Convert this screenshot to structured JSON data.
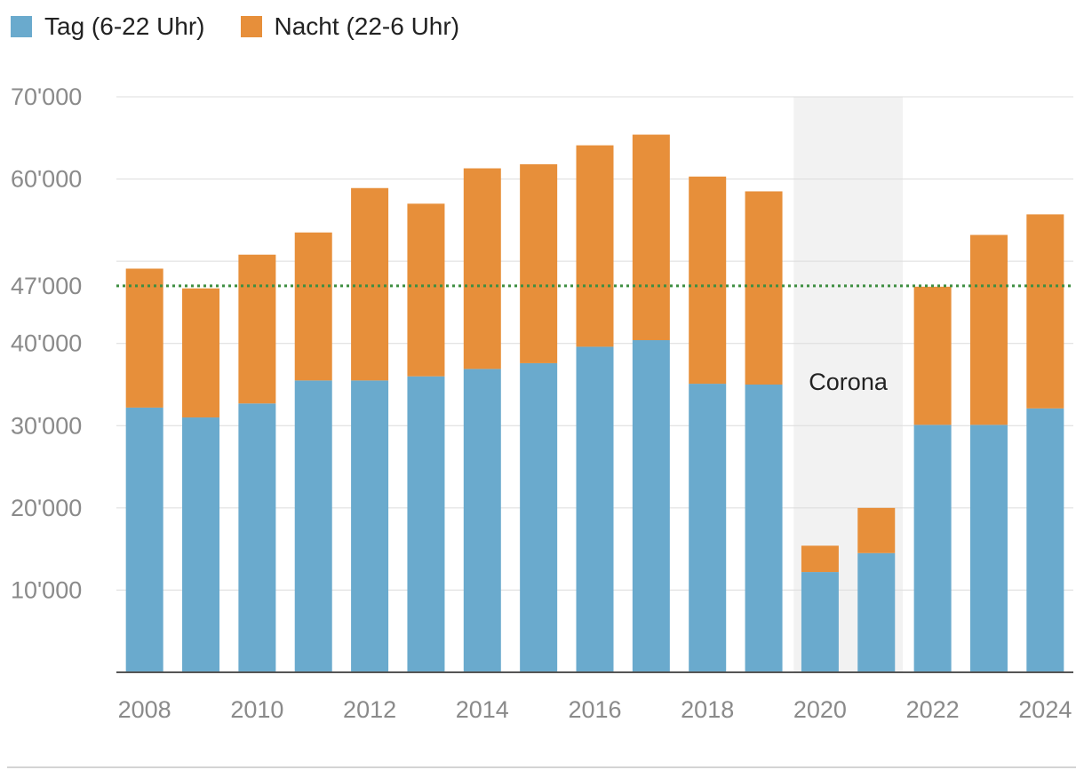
{
  "chart_data": {
    "type": "bar",
    "stacked": true,
    "categories": [
      "2008",
      "2009",
      "2010",
      "2011",
      "2012",
      "2013",
      "2014",
      "2015",
      "2016",
      "2017",
      "2018",
      "2019",
      "2020",
      "2021",
      "2022",
      "2023",
      "2024"
    ],
    "x_tick_labels": [
      "2008",
      "2010",
      "2012",
      "2014",
      "2016",
      "2018",
      "2020",
      "2022",
      "2024"
    ],
    "series": [
      {
        "name": "Tag (6-22 Uhr)",
        "color": "#6aaacd",
        "values": [
          32200,
          31000,
          32700,
          35500,
          35500,
          36000,
          36900,
          37600,
          39600,
          40400,
          35100,
          35000,
          12200,
          14500,
          30100,
          30100,
          32100
        ]
      },
      {
        "name": "Nacht (22-6 Uhr)",
        "color": "#e78f3a",
        "values": [
          16900,
          15700,
          18100,
          18000,
          23400,
          21000,
          24400,
          24200,
          24500,
          25000,
          25200,
          23500,
          3200,
          5500,
          16800,
          23100,
          23600
        ]
      }
    ],
    "ylim": [
      0,
      70000
    ],
    "y_ticks": [
      10000,
      20000,
      30000,
      40000,
      60000,
      70000
    ],
    "y_tick_labels": [
      "10'000",
      "20'000",
      "30'000",
      "40'000",
      "60'000",
      "70'000"
    ],
    "gridlines": [
      10000,
      20000,
      30000,
      40000,
      50000,
      60000,
      70000
    ],
    "reference_line": {
      "value": 47000,
      "label": "47'000",
      "color": "#3e8e41",
      "style": "dotted"
    },
    "shaded_region": {
      "from": "2020",
      "to": "2021",
      "label": "Corona",
      "color": "#f2f2f2"
    },
    "legend": "top-left"
  }
}
